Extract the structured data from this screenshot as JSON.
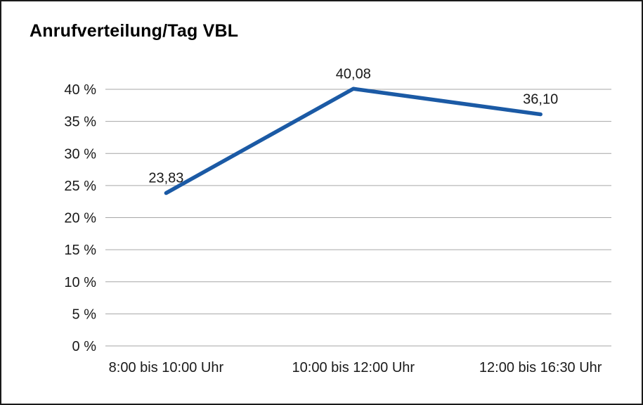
{
  "chart_data": {
    "type": "line",
    "title": "Anrufverteilung/Tag VBL",
    "categories": [
      "8:00 bis 10:00 Uhr",
      "10:00 bis 12:00 Uhr",
      "12:00 bis 16:30 Uhr"
    ],
    "values": [
      23.83,
      40.08,
      36.1
    ],
    "value_labels": [
      "23,83",
      "40,08",
      "36,10"
    ],
    "y_ticks": [
      0,
      5,
      10,
      15,
      20,
      25,
      30,
      35,
      40
    ],
    "y_tick_suffix": " %",
    "ylim": [
      0,
      40
    ],
    "xlabel": "",
    "ylabel": "",
    "grid": "horizontal",
    "legend": "none",
    "colors": {
      "line": "#1b5aa5",
      "grid": "#a6a6a6",
      "text": "#1a1a1a",
      "border": "#1a1a1a",
      "background": "#ffffff"
    }
  }
}
